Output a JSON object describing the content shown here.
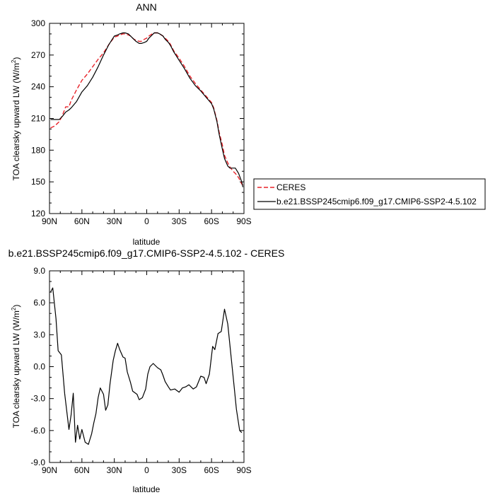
{
  "chart_data": [
    {
      "type": "line",
      "title": "ANN",
      "xlabel": "latitude",
      "ylabel": "TOA clearsky upward LW (W/m",
      "ylabel_sup": "2",
      "ylabel_close": ")",
      "xlim": [
        90,
        -90
      ],
      "ylim": [
        120,
        300
      ],
      "x_tick_values": [
        90,
        60,
        30,
        0,
        -30,
        -60,
        -90
      ],
      "x_ticks": [
        "90N",
        "60N",
        "30N",
        "0",
        "30S",
        "60S",
        "90S"
      ],
      "y_ticks": [
        "120",
        "150",
        "180",
        "210",
        "240",
        "270",
        "300"
      ],
      "legend_position": "right",
      "series": [
        {
          "name": "CERES",
          "color": "#e8232a",
          "dash": "dashed",
          "x": [
            89,
            85,
            81,
            78,
            75,
            72,
            70,
            65,
            60,
            55,
            50,
            45,
            40,
            35,
            30,
            27,
            25,
            22,
            20,
            17,
            15,
            12,
            10,
            7,
            5,
            2,
            0,
            -2,
            -5,
            -7,
            -10,
            -12,
            -15,
            -17,
            -20,
            -22,
            -25,
            -30,
            -35,
            -40,
            -45,
            -50,
            -55,
            -60,
            -62,
            -65,
            -67,
            -70,
            -72,
            -75,
            -77,
            -80,
            -82,
            -85,
            -88,
            -89
          ],
          "y": [
            201,
            203,
            207,
            213,
            221,
            221,
            227,
            237,
            246,
            252,
            259,
            266,
            272,
            280,
            287,
            288,
            289,
            290,
            290,
            289,
            288,
            285,
            284,
            283,
            283,
            285,
            286,
            288,
            290,
            291,
            291,
            290,
            288,
            286,
            283,
            280,
            274,
            267,
            259,
            250,
            243,
            237,
            231,
            225,
            220,
            208,
            197,
            185,
            175,
            168,
            164,
            160,
            158,
            154,
            148,
            147
          ]
        },
        {
          "name": "b.e21.BSSP245cmip6.f09_g17.CMIP6-SSP2-4.5.102",
          "color": "#000000",
          "dash": "solid",
          "x": [
            89,
            85,
            81,
            78,
            75,
            72,
            70,
            65,
            60,
            55,
            50,
            45,
            40,
            35,
            30,
            27,
            25,
            22,
            20,
            17,
            15,
            12,
            10,
            7,
            5,
            2,
            0,
            -2,
            -5,
            -7,
            -10,
            -12,
            -15,
            -17,
            -20,
            -22,
            -25,
            -30,
            -35,
            -40,
            -45,
            -50,
            -55,
            -60,
            -62,
            -65,
            -67,
            -70,
            -72,
            -75,
            -77,
            -80,
            -82,
            -85,
            -88,
            -89
          ],
          "y": [
            209,
            209,
            209,
            212,
            216,
            218,
            220,
            226,
            235,
            241,
            249,
            259,
            270,
            280,
            288,
            289,
            290,
            291,
            291,
            290,
            288,
            285,
            283,
            281,
            281,
            282,
            283,
            286,
            289,
            291,
            291,
            290,
            288,
            285,
            282,
            279,
            273,
            265,
            257,
            248,
            241,
            236,
            230,
            224,
            219,
            207,
            195,
            181,
            172,
            165,
            163,
            163,
            163,
            158,
            150,
            145
          ]
        }
      ]
    },
    {
      "type": "line",
      "title": "b.e21.BSSP245cmip6.f09_g17.CMIP6-SSP2-4.5.102 - CERES",
      "xlabel": "latitude",
      "ylabel": "TOA clearsky upward LW (W/m",
      "ylabel_sup": "2",
      "ylabel_close": ")",
      "xlim": [
        90,
        -90
      ],
      "ylim": [
        -9,
        9
      ],
      "x_tick_values": [
        90,
        60,
        30,
        0,
        -30,
        -60,
        -90
      ],
      "x_ticks": [
        "90N",
        "60N",
        "30N",
        "0",
        "30S",
        "60S",
        "90S"
      ],
      "y_ticks": [
        "-9.0",
        "-6.0",
        "-3.0",
        "0.0",
        "3.0",
        "6.0",
        "9.0"
      ],
      "series": [
        {
          "color": "#000000",
          "x": [
            89,
            87,
            84,
            82,
            79,
            76,
            72,
            70,
            68,
            66,
            64,
            62,
            60,
            57,
            54,
            51,
            49,
            47,
            45,
            43,
            40,
            38,
            36,
            34,
            31,
            29,
            27,
            25,
            22,
            20,
            18,
            15,
            13,
            9,
            7,
            4,
            1,
            -1,
            -3,
            -6,
            -8,
            -10,
            -13,
            -15,
            -17,
            -20,
            -22,
            -26,
            -30,
            -33,
            -36,
            -39,
            -43,
            -46,
            -50,
            -53,
            -55,
            -58,
            -61,
            -63,
            -66,
            -69,
            -72,
            -75,
            -78,
            -81,
            -83,
            -86,
            -88
          ],
          "y": [
            7.0,
            7.4,
            4.5,
            1.5,
            1.1,
            -2.5,
            -5.9,
            -4.5,
            -2.5,
            -7.1,
            -5.5,
            -6.8,
            -5.9,
            -7.1,
            -7.3,
            -6.3,
            -5.3,
            -4.4,
            -2.9,
            -2.0,
            -2.6,
            -4.1,
            -3.6,
            -1.6,
            0.6,
            1.5,
            2.2,
            1.6,
            0.9,
            0.8,
            -0.5,
            -1.5,
            -2.3,
            -2.6,
            -3.1,
            -2.9,
            -2.1,
            -0.7,
            0.0,
            0.3,
            0.1,
            -0.1,
            -0.3,
            -0.8,
            -1.4,
            -1.9,
            -2.2,
            -2.1,
            -2.4,
            -2.0,
            -1.9,
            -1.7,
            -2.1,
            -1.9,
            -0.9,
            -1.0,
            -1.6,
            -0.7,
            1.9,
            1.6,
            3.1,
            3.3,
            5.4,
            4.0,
            1.0,
            -2.0,
            -4.0,
            -6.0,
            -6.2
          ]
        }
      ]
    }
  ]
}
